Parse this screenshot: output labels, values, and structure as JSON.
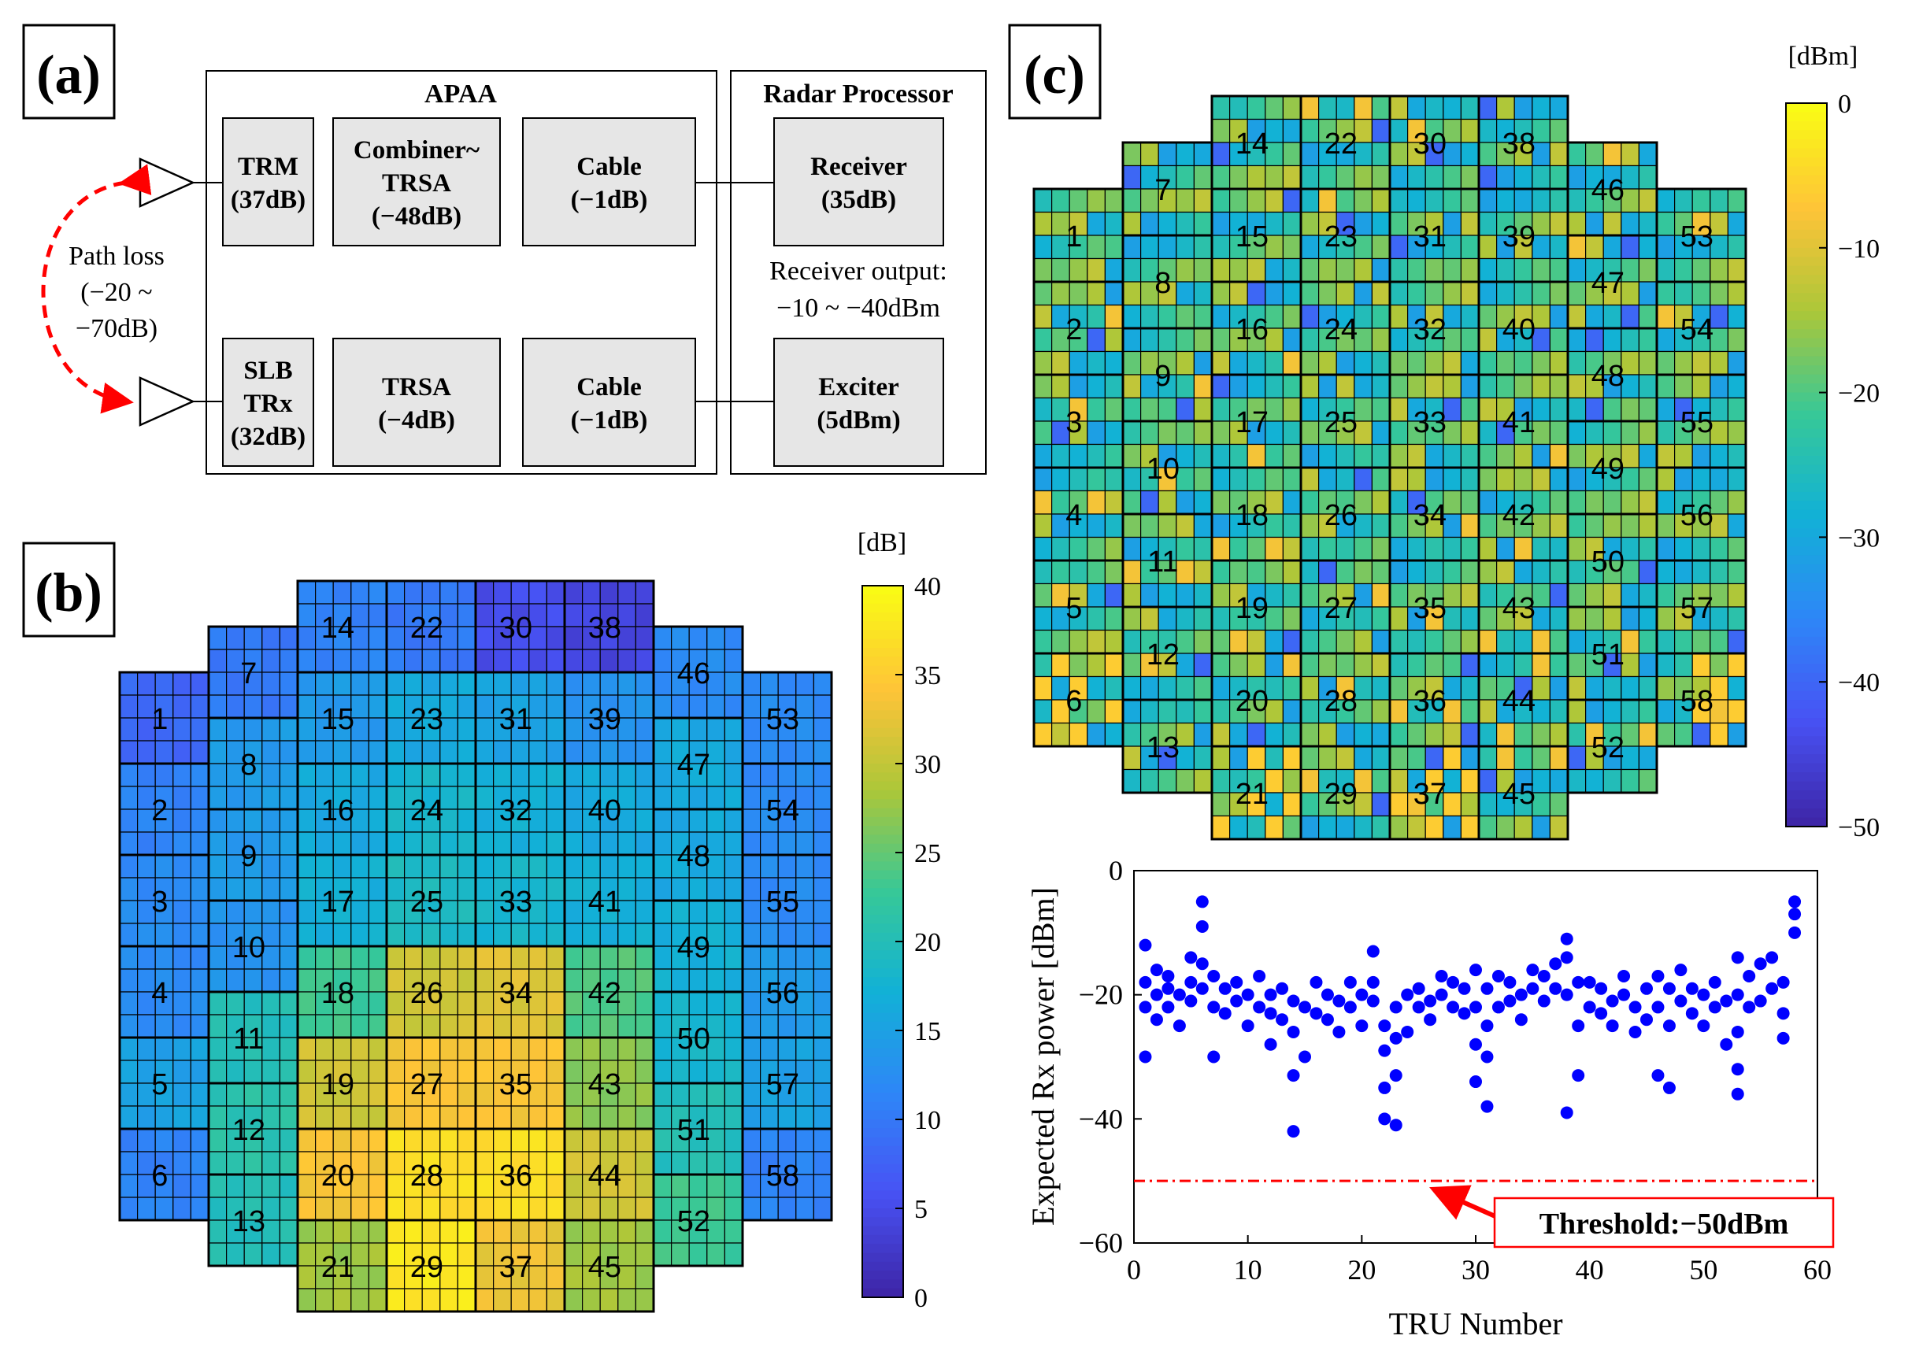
{
  "panel_a": {
    "label": "(a)",
    "apaa_title": "APAA",
    "radar_title": "Radar Processor",
    "blocks": {
      "trm": [
        "TRM",
        "(37dB)"
      ],
      "combiner": [
        "Combiner~",
        "TRSA",
        "(−48dB)"
      ],
      "cable_top": [
        "Cable",
        "(−1dB)"
      ],
      "receiver": [
        "Receiver",
        "(35dB)"
      ],
      "slb": [
        "SLB",
        "TRx",
        "(32dB)"
      ],
      "trsa": [
        "TRSA",
        "(−4dB)"
      ],
      "cable_bottom": [
        "Cable",
        "(−1dB)"
      ],
      "exciter": [
        "Exciter",
        "(5dBm)"
      ]
    },
    "path_loss": [
      "Path loss",
      "(−20 ~",
      "−70dB)"
    ],
    "receiver_output": [
      "Receiver output:",
      "−10 ~ −40dBm"
    ]
  },
  "panel_b": {
    "label": "(b)",
    "unit": "[dB]",
    "colorbar_ticks": [
      "40",
      "35",
      "30",
      "25",
      "20",
      "15",
      "10",
      "5",
      "0"
    ],
    "colorbar_range": [
      0,
      40
    ],
    "tru_labels": [
      "1",
      "2",
      "3",
      "4",
      "5",
      "6",
      "7",
      "8",
      "9",
      "10",
      "11",
      "12",
      "13",
      "14",
      "15",
      "16",
      "17",
      "18",
      "19",
      "20",
      "21",
      "22",
      "23",
      "24",
      "25",
      "26",
      "27",
      "28",
      "29",
      "30",
      "31",
      "32",
      "33",
      "34",
      "35",
      "36",
      "37",
      "38",
      "39",
      "40",
      "41",
      "42",
      "43",
      "44",
      "45",
      "46",
      "47",
      "48",
      "49",
      "50",
      "51",
      "52",
      "53",
      "54",
      "55",
      "56",
      "57",
      "58"
    ],
    "tru_values": [
      8,
      11,
      12,
      12,
      15,
      11,
      10,
      14,
      14,
      13,
      20,
      21,
      20,
      11,
      14,
      16,
      17,
      23,
      31,
      34,
      28,
      10,
      16,
      18,
      19,
      31,
      34,
      37,
      38,
      5,
      15,
      17,
      18,
      32,
      34,
      37,
      33,
      4,
      13,
      16,
      17,
      24,
      27,
      31,
      28,
      12,
      16,
      16,
      17,
      18,
      20,
      23,
      12,
      12,
      12,
      14,
      15,
      11
    ]
  },
  "panel_c": {
    "label": "(c)",
    "unit": "[dBm]",
    "colorbar_ticks": [
      "0",
      "−10",
      "−20",
      "−30",
      "−40",
      "−50"
    ],
    "colorbar_range": [
      -50,
      0
    ]
  },
  "chart_data": {
    "type": "scatter",
    "title": "",
    "xlabel": "TRU Number",
    "ylabel": "Expected Rx power [dBm]",
    "xlim": [
      0,
      60
    ],
    "ylim": [
      -60,
      0
    ],
    "xticks": [
      "0",
      "10",
      "20",
      "30",
      "40",
      "50",
      "60"
    ],
    "yticks": [
      "0",
      "−20",
      "−40",
      "−60"
    ],
    "threshold": {
      "value": -50,
      "label": "Threshold:−50dBm"
    },
    "series": [
      {
        "name": "Expected Rx power",
        "color": "#0000ff",
        "points": [
          [
            1,
            -30
          ],
          [
            1,
            -12
          ],
          [
            1,
            -18
          ],
          [
            1,
            -22
          ],
          [
            2,
            -20
          ],
          [
            2,
            -16
          ],
          [
            2,
            -24
          ],
          [
            3,
            -19
          ],
          [
            3,
            -17
          ],
          [
            3,
            -22
          ],
          [
            4,
            -25
          ],
          [
            4,
            -20
          ],
          [
            5,
            -18
          ],
          [
            5,
            -14
          ],
          [
            5,
            -21
          ],
          [
            6,
            -5
          ],
          [
            6,
            -9
          ],
          [
            6,
            -19
          ],
          [
            6,
            -15
          ],
          [
            7,
            -30
          ],
          [
            7,
            -22
          ],
          [
            7,
            -17
          ],
          [
            8,
            -23
          ],
          [
            8,
            -19
          ],
          [
            9,
            -18
          ],
          [
            9,
            -21
          ],
          [
            10,
            -20
          ],
          [
            10,
            -25
          ],
          [
            11,
            -17
          ],
          [
            11,
            -22
          ],
          [
            12,
            -28
          ],
          [
            12,
            -20
          ],
          [
            12,
            -23
          ],
          [
            13,
            -24
          ],
          [
            13,
            -19
          ],
          [
            14,
            -42
          ],
          [
            14,
            -33
          ],
          [
            14,
            -26
          ],
          [
            14,
            -21
          ],
          [
            15,
            -30
          ],
          [
            15,
            -22
          ],
          [
            16,
            -23
          ],
          [
            16,
            -18
          ],
          [
            17,
            -20
          ],
          [
            17,
            -24
          ],
          [
            18,
            -21
          ],
          [
            18,
            -26
          ],
          [
            19,
            -22
          ],
          [
            19,
            -18
          ],
          [
            20,
            -25
          ],
          [
            20,
            -20
          ],
          [
            21,
            -21
          ],
          [
            21,
            -13
          ],
          [
            21,
            -18
          ],
          [
            22,
            -40
          ],
          [
            22,
            -35
          ],
          [
            22,
            -29
          ],
          [
            22,
            -25
          ],
          [
            23,
            -41
          ],
          [
            23,
            -33
          ],
          [
            23,
            -27
          ],
          [
            23,
            -22
          ],
          [
            24,
            -26
          ],
          [
            24,
            -20
          ],
          [
            25,
            -22
          ],
          [
            25,
            -19
          ],
          [
            26,
            -21
          ],
          [
            26,
            -24
          ],
          [
            27,
            -20
          ],
          [
            27,
            -17
          ],
          [
            28,
            -22
          ],
          [
            28,
            -18
          ],
          [
            29,
            -23
          ],
          [
            29,
            -19
          ],
          [
            30,
            -34
          ],
          [
            30,
            -28
          ],
          [
            30,
            -22
          ],
          [
            30,
            -16
          ],
          [
            31,
            -38
          ],
          [
            31,
            -30
          ],
          [
            31,
            -25
          ],
          [
            31,
            -19
          ],
          [
            32,
            -22
          ],
          [
            32,
            -17
          ],
          [
            33,
            -21
          ],
          [
            33,
            -18
          ],
          [
            34,
            -24
          ],
          [
            34,
            -20
          ],
          [
            35,
            -19
          ],
          [
            35,
            -16
          ],
          [
            36,
            -17
          ],
          [
            36,
            -21
          ],
          [
            37,
            -15
          ],
          [
            37,
            -19
          ],
          [
            38,
            -39
          ],
          [
            38,
            -11
          ],
          [
            38,
            -14
          ],
          [
            38,
            -20
          ],
          [
            39,
            -33
          ],
          [
            39,
            -25
          ],
          [
            39,
            -18
          ],
          [
            40,
            -22
          ],
          [
            40,
            -18
          ],
          [
            41,
            -23
          ],
          [
            41,
            -19
          ],
          [
            42,
            -21
          ],
          [
            42,
            -25
          ],
          [
            43,
            -20
          ],
          [
            43,
            -17
          ],
          [
            44,
            -22
          ],
          [
            44,
            -26
          ],
          [
            45,
            -19
          ],
          [
            45,
            -24
          ],
          [
            46,
            -33
          ],
          [
            46,
            -22
          ],
          [
            46,
            -17
          ],
          [
            47,
            -35
          ],
          [
            47,
            -25
          ],
          [
            47,
            -19
          ],
          [
            48,
            -21
          ],
          [
            48,
            -16
          ],
          [
            49,
            -23
          ],
          [
            49,
            -19
          ],
          [
            50,
            -20
          ],
          [
            50,
            -25
          ],
          [
            51,
            -22
          ],
          [
            51,
            -18
          ],
          [
            52,
            -28
          ],
          [
            52,
            -21
          ],
          [
            53,
            -36
          ],
          [
            53,
            -32
          ],
          [
            53,
            -26
          ],
          [
            53,
            -14
          ],
          [
            53,
            -20
          ],
          [
            54,
            -17
          ],
          [
            54,
            -22
          ],
          [
            55,
            -21
          ],
          [
            55,
            -15
          ],
          [
            56,
            -19
          ],
          [
            56,
            -14
          ],
          [
            57,
            -27
          ],
          [
            57,
            -18
          ],
          [
            57,
            -23
          ],
          [
            58,
            -5
          ],
          [
            58,
            -7
          ],
          [
            58,
            -10
          ]
        ]
      }
    ]
  },
  "colors": {
    "accent_threshold": "#ff0000",
    "marker": "#0000ff",
    "block_fill": "#e6e6e6"
  }
}
